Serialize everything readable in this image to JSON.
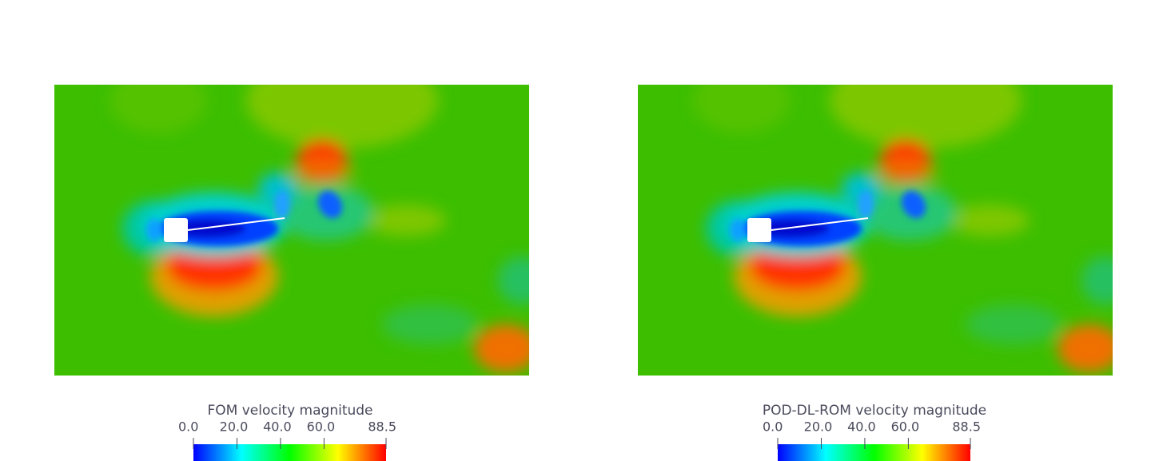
{
  "chart_data": [
    {
      "type": "colormap-field",
      "title": "FOM velocity magnitude",
      "clim": [
        0,
        88.5
      ],
      "cticks": [
        {
          "value": 0,
          "label": "0.0"
        },
        {
          "value": 20,
          "label": "20.0"
        },
        {
          "value": 40,
          "label": "40.0"
        },
        {
          "value": 60,
          "label": "60.0"
        },
        {
          "value": 88.5,
          "label": "88.5"
        }
      ],
      "colormap": [
        "#0000ff",
        "#00ffff",
        "#00ff00",
        "#ffff00",
        "#ff0000"
      ]
    },
    {
      "type": "colormap-field",
      "title": "POD-DL-ROM velocity magnitude",
      "clim": [
        0,
        88.5
      ],
      "cticks": [
        {
          "value": 0,
          "label": "0.0"
        },
        {
          "value": 20,
          "label": "20.0"
        },
        {
          "value": 40,
          "label": "40.0"
        },
        {
          "value": 60,
          "label": "60.0"
        },
        {
          "value": 88.5,
          "label": "88.5"
        }
      ],
      "colormap": [
        "#0000ff",
        "#00ffff",
        "#00ff00",
        "#ffff00",
        "#ff0000"
      ]
    }
  ]
}
